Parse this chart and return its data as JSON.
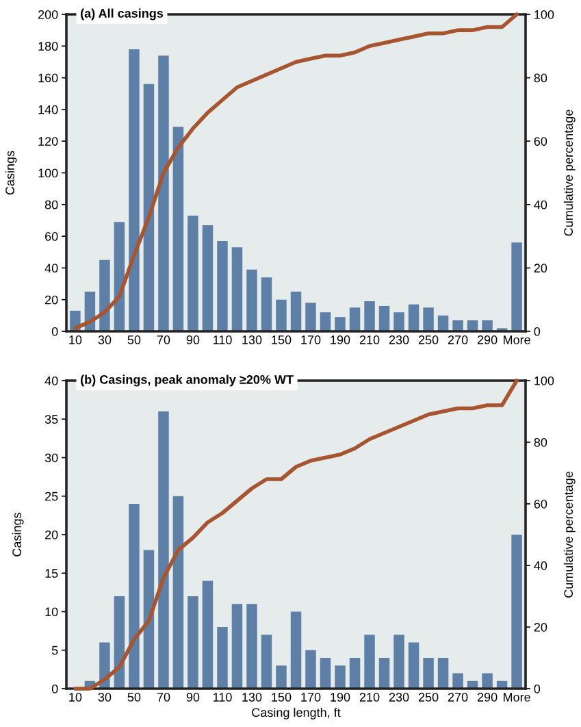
{
  "chart_data": [
    {
      "type": "bar",
      "title": "(a) All casings",
      "ylabel": "Casings",
      "y2label": "Cumulative percentage",
      "categories": [
        "10",
        null,
        "30",
        null,
        "50",
        null,
        "70",
        null,
        "90",
        null,
        "110",
        null,
        "130",
        null,
        "150",
        null,
        "170",
        null,
        "190",
        null,
        "210",
        null,
        "230",
        null,
        "250",
        null,
        "270",
        null,
        "290",
        null,
        "More"
      ],
      "series": [
        {
          "color": "#5e7fa6",
          "values": [
            13,
            25,
            45,
            69,
            178,
            156,
            174,
            129,
            73,
            67,
            57,
            53,
            39,
            34,
            20,
            25,
            18,
            12,
            9,
            15,
            19,
            16,
            12,
            17,
            15,
            10,
            7,
            7,
            7,
            2,
            56
          ]
        },
        {
          "type": "line",
          "axis": "y2",
          "color": "#a65530",
          "values": [
            1,
            3,
            6,
            11,
            24,
            36,
            50,
            58,
            64,
            69,
            73,
            77,
            79,
            81,
            83,
            85,
            86,
            87,
            87,
            88,
            90,
            91,
            92,
            93,
            94,
            94,
            95,
            95,
            96,
            96,
            100
          ]
        }
      ],
      "ylim": [
        0,
        200
      ],
      "yticks": [
        0,
        20,
        40,
        60,
        80,
        100,
        120,
        140,
        160,
        180,
        200
      ],
      "y2lim": [
        0,
        100
      ],
      "y2ticks": [
        0,
        20,
        40,
        60,
        80,
        100
      ],
      "grid": false
    },
    {
      "type": "bar",
      "title": "(b) Casings, peak anomaly ≥20% WT",
      "xlabel": "Casing length, ft",
      "ylabel": "Casings",
      "y2label": "Cumulative percentage",
      "categories": [
        "10",
        null,
        "30",
        null,
        "50",
        null,
        "70",
        null,
        "90",
        null,
        "110",
        null,
        "130",
        null,
        "150",
        null,
        "170",
        null,
        "190",
        null,
        "210",
        null,
        "230",
        null,
        "250",
        null,
        "270",
        null,
        "290",
        null,
        "More"
      ],
      "series": [
        {
          "color": "#5e7fa6",
          "values": [
            0,
            1,
            6,
            12,
            24,
            18,
            36,
            25,
            12,
            14,
            8,
            11,
            11,
            7,
            3,
            10,
            5,
            4,
            3,
            4,
            7,
            4,
            7,
            6,
            4,
            4,
            2,
            1,
            2,
            1,
            20
          ]
        },
        {
          "type": "line",
          "axis": "y2",
          "color": "#a65530",
          "values": [
            0,
            0,
            3,
            7,
            16,
            22,
            36,
            45,
            49,
            54,
            57,
            61,
            65,
            68,
            68,
            72,
            74,
            75,
            76,
            78,
            81,
            83,
            85,
            87,
            89,
            90,
            91,
            91,
            92,
            92,
            100
          ]
        }
      ],
      "ylim": [
        0,
        40
      ],
      "yticks": [
        0,
        5,
        10,
        15,
        20,
        25,
        30,
        35,
        40
      ],
      "y2lim": [
        0,
        100
      ],
      "y2ticks": [
        0,
        20,
        40,
        60,
        80,
        100
      ],
      "grid": false
    }
  ]
}
